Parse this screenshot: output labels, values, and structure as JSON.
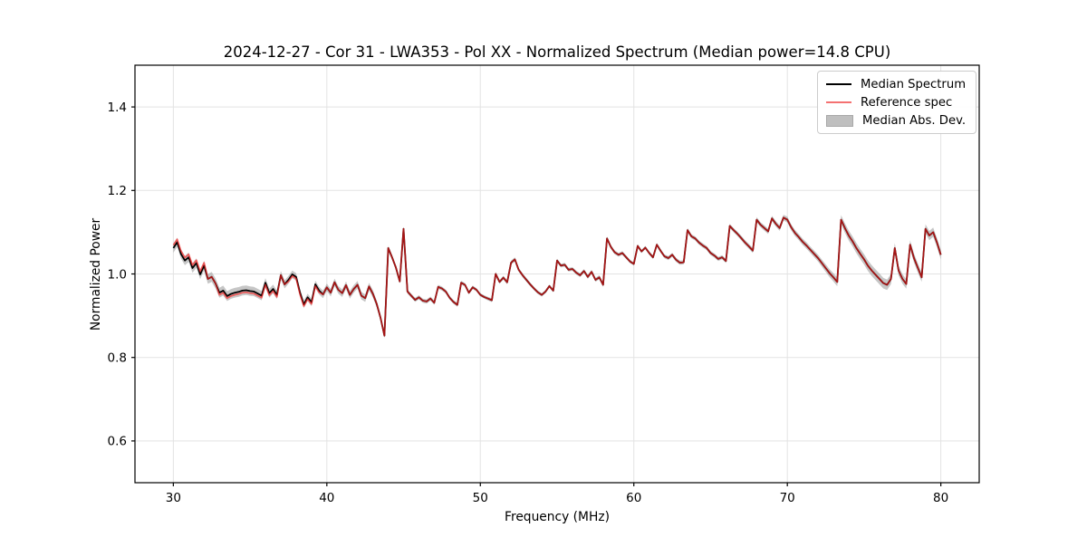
{
  "figure": {
    "title": "2024-12-27 - Cor 31 - LWA353 - Pol XX - Normalized Spectrum (Median power=14.8 CPU)"
  },
  "legend": {
    "entries": [
      {
        "label": "Median Spectrum",
        "type": "line",
        "color": "#000000"
      },
      {
        "label": "Reference spec",
        "type": "line",
        "color": "#f47171"
      },
      {
        "label": "Median Abs. Dev.",
        "type": "patch",
        "color": "#bfbfbf",
        "edge": "#a8a8a8"
      }
    ]
  },
  "colors": {
    "median_line": "#000000",
    "reference_line_rgba": "rgba(255,30,30,0.65)",
    "mad_band_fill": "#808080",
    "mad_band_opacity": 0.45,
    "grid": "#e3e3e3",
    "spine": "#000000"
  },
  "chart_data": {
    "type": "line",
    "title": "2024-12-27 - Cor 31 - LWA353 - Pol XX - Normalized Spectrum (Median power=14.8 CPU)",
    "xlabel": "Frequency (MHz)",
    "ylabel": "Normalized Power",
    "xlim": [
      27.5,
      82.5
    ],
    "ylim": [
      0.5,
      1.5
    ],
    "x_ticks": [
      30,
      40,
      50,
      60,
      70,
      80
    ],
    "y_ticks": [
      0.6,
      0.8,
      1.0,
      1.2,
      1.4
    ],
    "grid": true,
    "legend_position": "upper right",
    "x_start": 30.0,
    "x_step": 0.25,
    "series": [
      {
        "name": "Median Spectrum",
        "values": [
          1.062,
          1.076,
          1.048,
          1.032,
          1.04,
          1.014,
          1.026,
          0.999,
          1.02,
          0.988,
          0.993,
          0.977,
          0.955,
          0.96,
          0.947,
          0.952,
          0.955,
          0.957,
          0.96,
          0.961,
          0.959,
          0.958,
          0.953,
          0.948,
          0.979,
          0.954,
          0.964,
          0.95,
          0.997,
          0.975,
          0.986,
          0.999,
          0.993,
          0.955,
          0.927,
          0.944,
          0.932,
          0.975,
          0.96,
          0.951,
          0.968,
          0.955,
          0.98,
          0.962,
          0.954,
          0.973,
          0.95,
          0.964,
          0.974,
          0.948,
          0.942,
          0.97,
          0.952,
          0.928,
          0.895,
          0.852,
          1.062,
          1.04,
          1.015,
          0.982,
          1.108,
          0.958,
          0.948,
          0.938,
          0.944,
          0.936,
          0.934,
          0.941,
          0.931,
          0.969,
          0.965,
          0.958,
          0.943,
          0.933,
          0.926,
          0.979,
          0.974,
          0.955,
          0.968,
          0.962,
          0.95,
          0.945,
          0.941,
          0.937,
          1.0,
          0.981,
          0.991,
          0.98,
          1.027,
          1.035,
          1.01,
          0.997,
          0.986,
          0.975,
          0.965,
          0.956,
          0.95,
          0.958,
          0.971,
          0.96,
          1.032,
          1.02,
          1.022,
          1.01,
          1.012,
          1.003,
          0.997,
          1.007,
          0.993,
          1.005,
          0.986,
          0.992,
          0.974,
          1.085,
          1.065,
          1.052,
          1.046,
          1.05,
          1.04,
          1.03,
          1.024,
          1.067,
          1.054,
          1.063,
          1.05,
          1.04,
          1.07,
          1.055,
          1.042,
          1.038,
          1.046,
          1.034,
          1.027,
          1.028,
          1.105,
          1.09,
          1.085,
          1.075,
          1.068,
          1.062,
          1.05,
          1.044,
          1.036,
          1.04,
          1.031,
          1.115,
          1.105,
          1.096,
          1.086,
          1.075,
          1.066,
          1.056,
          1.13,
          1.118,
          1.11,
          1.102,
          1.133,
          1.12,
          1.11,
          1.135,
          1.13,
          1.112,
          1.098,
          1.088,
          1.077,
          1.068,
          1.058,
          1.048,
          1.038,
          1.026,
          1.014,
          1.002,
          0.992,
          0.981,
          1.13,
          1.11,
          1.092,
          1.078,
          1.062,
          1.048,
          1.035,
          1.02,
          1.008,
          0.998,
          0.988,
          0.978,
          0.974,
          0.988,
          1.062,
          1.008,
          0.988,
          0.976,
          1.07,
          1.038,
          1.015,
          0.992,
          1.108,
          1.092,
          1.1,
          1.075,
          1.046
        ]
      },
      {
        "name": "Reference spec",
        "derived_from": "Median Spectrum",
        "offset_regions": [
          {
            "from": 29.8,
            "to": 32.1,
            "offset": 0.007
          },
          {
            "from": 32.9,
            "to": 36.8,
            "offset": -0.005
          },
          {
            "from": 37.4,
            "to": 39.6,
            "offset": -0.004
          }
        ]
      },
      {
        "name": "Median Abs. Dev.",
        "band_halfwidth_points": [
          [
            30,
            0.011
          ],
          [
            33,
            0.012
          ],
          [
            36,
            0.011
          ],
          [
            38,
            0.009
          ],
          [
            40,
            0.009
          ],
          [
            43,
            0.009
          ],
          [
            44,
            0.006
          ],
          [
            45,
            0.005
          ],
          [
            47,
            0.005
          ],
          [
            50,
            0.004
          ],
          [
            52,
            0.005
          ],
          [
            54,
            0.004
          ],
          [
            58,
            0.005
          ],
          [
            60,
            0.004
          ],
          [
            63,
            0.005
          ],
          [
            66,
            0.005
          ],
          [
            68,
            0.006
          ],
          [
            70,
            0.007
          ],
          [
            72,
            0.008
          ],
          [
            73,
            0.01
          ],
          [
            74,
            0.012
          ],
          [
            76,
            0.013
          ],
          [
            77,
            0.012
          ],
          [
            78,
            0.011
          ],
          [
            80,
            0.011
          ]
        ]
      }
    ]
  }
}
